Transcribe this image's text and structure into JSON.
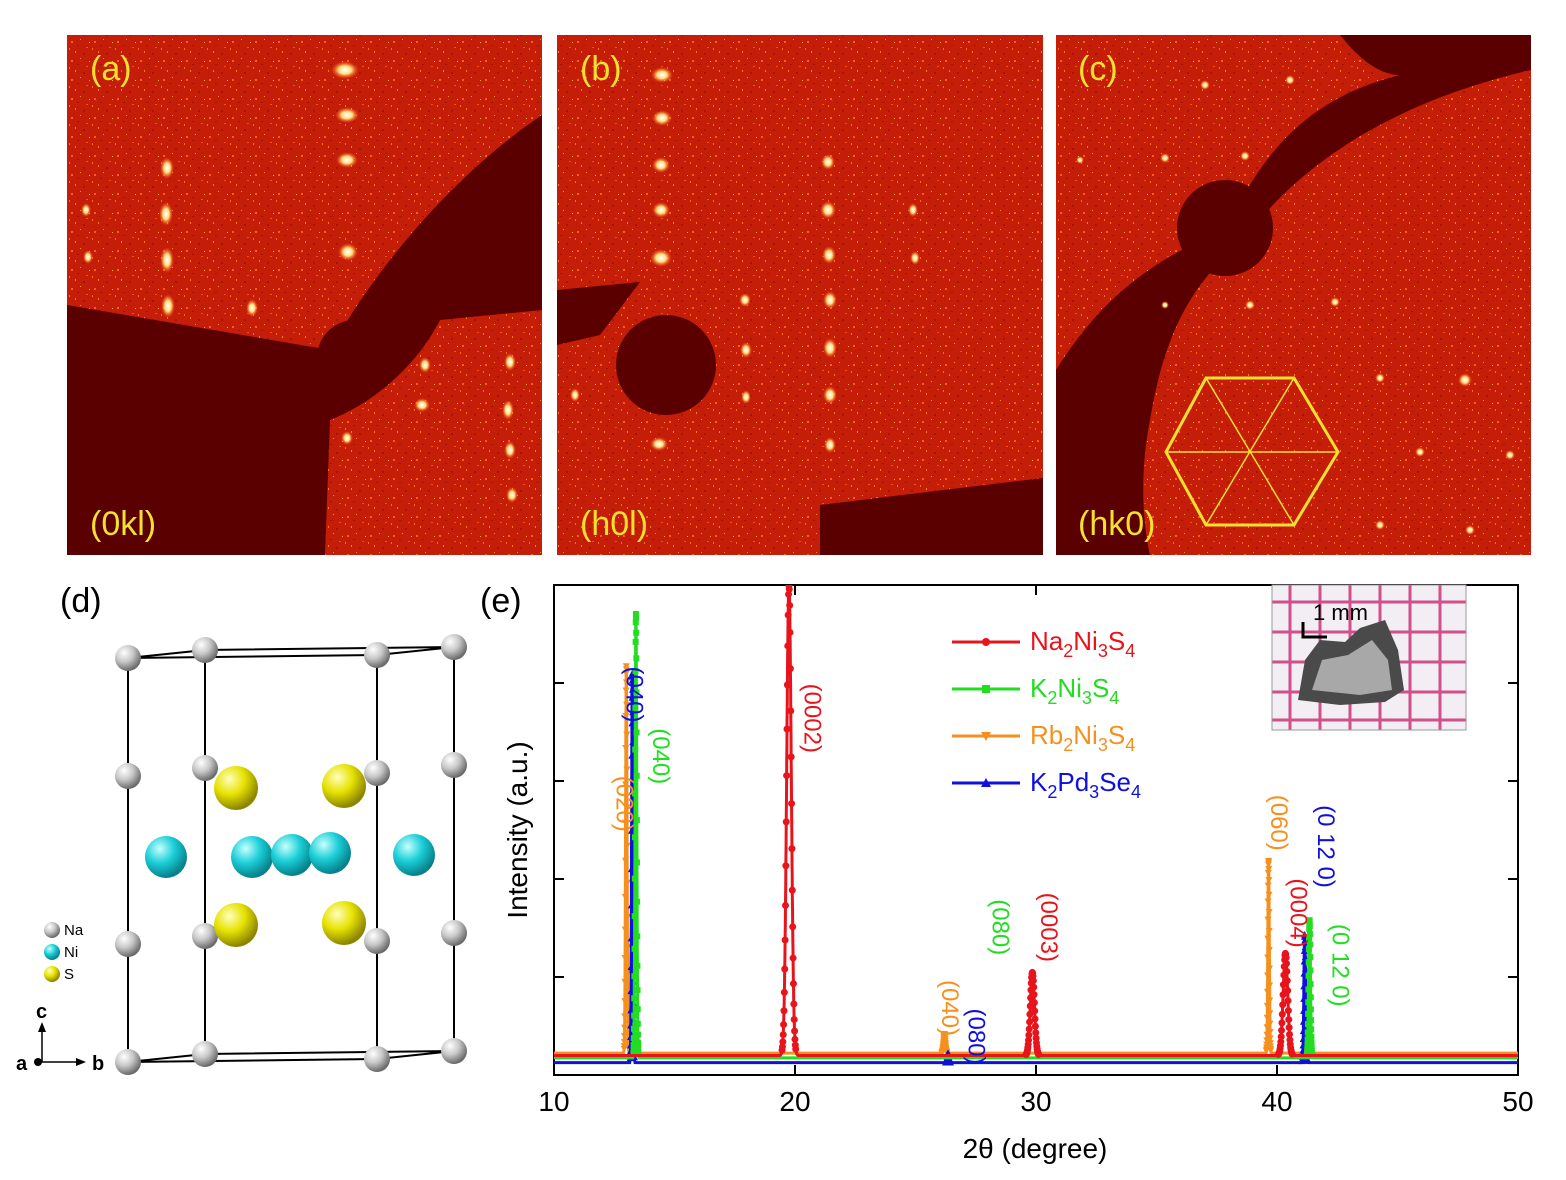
{
  "panels_top": [
    {
      "tag": "(a)",
      "plane": "(0kl)"
    },
    {
      "tag": "(b)",
      "plane": "(h0l)"
    },
    {
      "tag": "(c)",
      "plane": "(hk0)"
    }
  ],
  "structure": {
    "tag": "(d)",
    "legend": [
      "Na",
      "Ni",
      "S"
    ],
    "axes": {
      "a": "a",
      "b": "b",
      "c": "c"
    }
  },
  "colors": {
    "Na2Ni3S4": "#e8141c",
    "K2Ni3S4": "#22dd22",
    "Rb2Ni3S4": "#f5901e",
    "K2Pd3Se4": "#1010dd",
    "diffraction_bg": "#c81e08",
    "beam_stop": "#5a0000"
  },
  "inset": {
    "scale_label": "1 mm"
  },
  "chart_data": {
    "tag": "(e)",
    "type": "line",
    "xlabel": "2θ (degree)",
    "ylabel": "Intensity (a.u.)",
    "xlim": [
      10,
      50
    ],
    "ylim": [
      0,
      1.0
    ],
    "x_ticks": [
      10,
      20,
      30,
      40,
      50
    ],
    "x_tick_labels": [
      "10",
      "20",
      "30",
      "40",
      "50"
    ],
    "y_tick_labels": [],
    "legend_position": "top-right",
    "series": [
      {
        "key": "Na2Ni3S4",
        "label_main": "Na",
        "sub1": "2",
        "mid": "Ni",
        "sub2": "3",
        "end": "S",
        "sub3": "4",
        "marker": "circle",
        "baseline": 0.02,
        "peaks": [
          {
            "x": 19.75,
            "y": 0.99,
            "w": 0.22
          },
          {
            "x": 29.85,
            "y": 0.175,
            "w": 0.2
          },
          {
            "x": 40.35,
            "y": 0.215,
            "w": 0.22
          }
        ]
      },
      {
        "key": "K2Ni3S4",
        "label_main": "K",
        "sub1": "2",
        "mid": "Ni",
        "sub2": "3",
        "end": "S",
        "sub3": "4",
        "marker": "square",
        "baseline": 0.015,
        "peaks": [
          {
            "x": 13.4,
            "y": 0.935,
            "w": 0.08
          },
          {
            "x": 41.35,
            "y": 0.29,
            "w": 0.09
          }
        ]
      },
      {
        "key": "Rb2Ni3S4",
        "label_main": "Rb",
        "sub1": "2",
        "mid": "Ni",
        "sub2": "3",
        "end": "S",
        "sub3": "4",
        "marker": "triangle-down",
        "baseline": 0.025,
        "peaks": [
          {
            "x": 13.0,
            "y": 0.815,
            "w": 0.07
          },
          {
            "x": 26.2,
            "y": 0.04,
            "w": 0.08
          },
          {
            "x": 39.65,
            "y": 0.405,
            "w": 0.07
          }
        ]
      },
      {
        "key": "K2Pd3Se4",
        "label_main": "K",
        "sub1": "2",
        "mid": "Pd",
        "sub2": "3",
        "end": "Se",
        "sub3": "4",
        "marker": "triangle-up",
        "baseline": 0.005,
        "peaks": [
          {
            "x": 13.25,
            "y": 0.82,
            "w": 0.07
          },
          {
            "x": 26.35,
            "y": 0.02,
            "w": 0.08
          },
          {
            "x": 41.15,
            "y": 0.27,
            "w": 0.08
          }
        ]
      }
    ],
    "annotations": [
      {
        "text": "(040)",
        "x": 13.0,
        "y": 0.78,
        "series": "K2Pd3Se4"
      },
      {
        "text": "(020)",
        "x": 12.6,
        "y": 0.55,
        "series": "Rb2Ni3S4"
      },
      {
        "text": "(040)",
        "x": 14.1,
        "y": 0.65,
        "series": "K2Ni3S4"
      },
      {
        "text": "(0002)",
        "x": 20.4,
        "y": 0.73,
        "series": "Na2Ni3S4"
      },
      {
        "text": "(040)",
        "x": 26.1,
        "y": 0.12,
        "series": "Rb2Ni3S4"
      },
      {
        "text": "(080)",
        "x": 27.2,
        "y": 0.06,
        "series": "K2Pd3Se4"
      },
      {
        "text": "(080)",
        "x": 28.2,
        "y": 0.29,
        "series": "K2Ni3S4"
      },
      {
        "text": "(0003)",
        "x": 30.2,
        "y": 0.29,
        "series": "Na2Ni3S4"
      },
      {
        "text": "(060)",
        "x": 39.75,
        "y": 0.51,
        "series": "Rb2Ni3S4"
      },
      {
        "text": "(0004)",
        "x": 40.55,
        "y": 0.32,
        "series": "Na2Ni3S4"
      },
      {
        "text": "(0 12 0)",
        "x": 41.7,
        "y": 0.46,
        "series": "K2Pd3Se4"
      },
      {
        "text": "(0 12 0)",
        "x": 42.3,
        "y": 0.21,
        "series": "K2Ni3S4"
      }
    ]
  }
}
